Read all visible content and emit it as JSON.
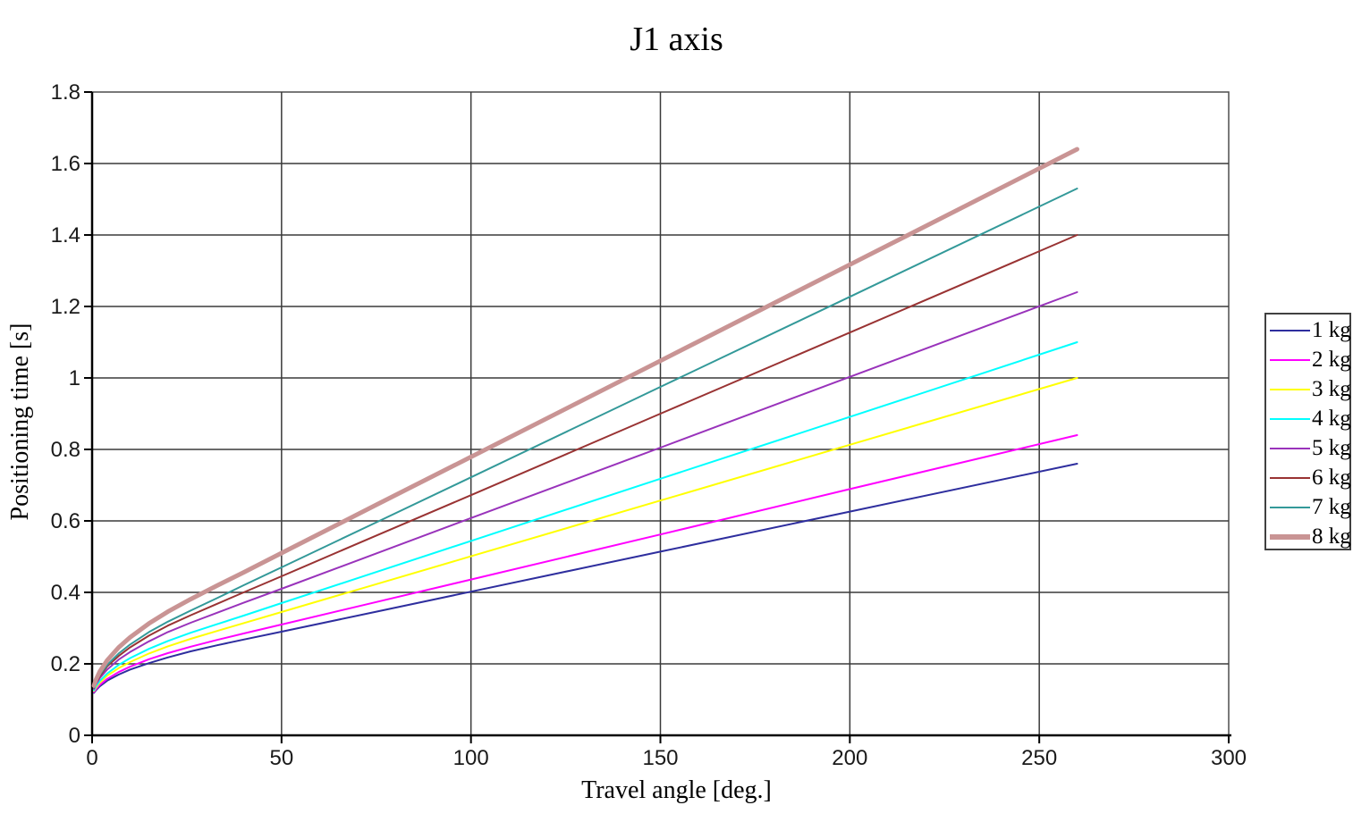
{
  "chart_data": {
    "type": "line",
    "title": "J1 axis",
    "xlabel": "Travel angle [deg.]",
    "ylabel": "Positioning time [s]",
    "xlim": [
      0,
      300
    ],
    "ylim": [
      0,
      1.8
    ],
    "grid": true,
    "grid_color": "#3a3a3a",
    "axis_color": "#000000",
    "border_color": "#4d4d4d",
    "legend_position": "right-outside",
    "xticks": {
      "values": [
        0,
        50,
        100,
        150,
        200,
        250,
        300
      ],
      "labels": [
        "0",
        "50",
        "100",
        "150",
        "200",
        "250",
        "300"
      ]
    },
    "yticks": {
      "values": [
        0,
        0.2,
        0.4,
        0.6,
        0.8,
        1.0,
        1.2,
        1.4,
        1.6,
        1.8
      ],
      "labels": [
        "0",
        "0.2",
        "0.4",
        "0.6",
        "0.8",
        "1",
        "1.2",
        "1.4",
        "1.6",
        "1.8"
      ]
    },
    "x": [
      0.5,
      1,
      2,
      4,
      7,
      10,
      15,
      20,
      26,
      33,
      40,
      50,
      75,
      100,
      150,
      200,
      260
    ],
    "series": [
      {
        "name": "1 kg",
        "color": "#2e2e9e",
        "width": 2,
        "values": [
          0.119,
          0.126,
          0.137,
          0.153,
          0.17,
          0.184,
          0.202,
          0.218,
          0.235,
          0.252,
          0.268,
          0.29,
          0.346,
          0.402,
          0.514,
          0.626,
          0.76
        ]
      },
      {
        "name": "2 kg",
        "color": "#ff00ff",
        "width": 2,
        "values": [
          0.121,
          0.129,
          0.141,
          0.158,
          0.177,
          0.192,
          0.213,
          0.23,
          0.248,
          0.267,
          0.285,
          0.31,
          0.373,
          0.436,
          0.562,
          0.689,
          0.84
        ]
      },
      {
        "name": "3 kg",
        "color": "#ffff00",
        "width": 2,
        "values": [
          0.124,
          0.133,
          0.147,
          0.167,
          0.188,
          0.205,
          0.229,
          0.249,
          0.27,
          0.292,
          0.314,
          0.345,
          0.423,
          0.501,
          0.657,
          0.813,
          1.0
        ]
      },
      {
        "name": "4 kg",
        "color": "#00ffff",
        "width": 2,
        "values": [
          0.126,
          0.137,
          0.152,
          0.173,
          0.197,
          0.216,
          0.242,
          0.264,
          0.287,
          0.311,
          0.335,
          0.37,
          0.457,
          0.544,
          0.718,
          0.891,
          1.1
        ]
      },
      {
        "name": "5 kg",
        "color": "#9933bb",
        "width": 2,
        "values": [
          0.13,
          0.142,
          0.16,
          0.184,
          0.212,
          0.233,
          0.263,
          0.289,
          0.315,
          0.343,
          0.371,
          0.41,
          0.509,
          0.608,
          0.805,
          1.003,
          1.24
        ]
      },
      {
        "name": "6 kg",
        "color": "#993333",
        "width": 2,
        "values": [
          0.133,
          0.146,
          0.165,
          0.193,
          0.222,
          0.246,
          0.279,
          0.307,
          0.336,
          0.368,
          0.4,
          0.445,
          0.559,
          0.672,
          0.9,
          1.127,
          1.4
        ]
      },
      {
        "name": "7 kg",
        "color": "#339999",
        "width": 2,
        "values": [
          0.134,
          0.149,
          0.169,
          0.197,
          0.229,
          0.254,
          0.289,
          0.318,
          0.349,
          0.384,
          0.42,
          0.47,
          0.596,
          0.722,
          0.975,
          1.227,
          1.53
        ]
      },
      {
        "name": "8 kg",
        "color": "#c99494",
        "width": 5,
        "values": [
          0.139,
          0.155,
          0.178,
          0.21,
          0.246,
          0.274,
          0.313,
          0.346,
          0.381,
          0.419,
          0.456,
          0.51,
          0.645,
          0.779,
          1.048,
          1.317,
          1.64
        ]
      }
    ]
  }
}
